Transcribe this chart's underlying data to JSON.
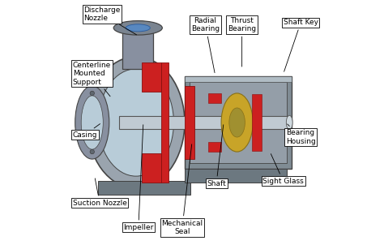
{
  "background_color": "#ffffff",
  "annotation_fontsize": 6.5,
  "annotations": [
    {
      "text": "Discharge\nNozzle",
      "pt": [
        0.28,
        0.855
      ],
      "txt": [
        0.055,
        0.945
      ],
      "ha": "left"
    },
    {
      "text": "Centerline\nMounted\nSupport",
      "pt": [
        0.17,
        0.6
      ],
      "txt": [
        0.01,
        0.7
      ],
      "ha": "left"
    },
    {
      "text": "Casing",
      "pt": [
        0.13,
        0.5
      ],
      "txt": [
        0.01,
        0.45
      ],
      "ha": "left"
    },
    {
      "text": "Suction Nozzle",
      "pt": [
        0.1,
        0.28
      ],
      "txt": [
        0.01,
        0.17
      ],
      "ha": "left"
    },
    {
      "text": "Impeller",
      "pt": [
        0.3,
        0.5
      ],
      "txt": [
        0.28,
        0.07
      ],
      "ha": "center"
    },
    {
      "text": "Mechanical\nSeal",
      "pt": [
        0.5,
        0.42
      ],
      "txt": [
        0.46,
        0.07
      ],
      "ha": "center"
    },
    {
      "text": "Shaft",
      "pt": [
        0.63,
        0.5
      ],
      "txt": [
        0.6,
        0.25
      ],
      "ha": "center"
    },
    {
      "text": "Sight Glass",
      "pt": [
        0.82,
        0.38
      ],
      "txt": [
        0.79,
        0.26
      ],
      "ha": "left"
    },
    {
      "text": "Bearing\nHousing",
      "pt": [
        0.885,
        0.5
      ],
      "txt": [
        0.885,
        0.44
      ],
      "ha": "left"
    },
    {
      "text": "Radial\nBearing",
      "pt": [
        0.595,
        0.695
      ],
      "txt": [
        0.555,
        0.9
      ],
      "ha": "center"
    },
    {
      "text": "Thrust\nBearing",
      "pt": [
        0.705,
        0.72
      ],
      "txt": [
        0.705,
        0.9
      ],
      "ha": "center"
    },
    {
      "text": "Shaft Key",
      "pt": [
        0.875,
        0.7
      ],
      "txt": [
        0.875,
        0.91
      ],
      "ha": "left"
    }
  ],
  "colors": {
    "casing": "#9aa4ae",
    "casing_edge": "#444444",
    "casing_inner": "#b8ccd8",
    "suction": "#8890a0",
    "discharge_tube": "#8890a0",
    "discharge_face": "#7a8490",
    "discharge_blue": "#5888c0",
    "bear_housing": "#808c94",
    "bear_inner": "#949ea8",
    "shaft": "#c0cad2",
    "red": "#cc2020",
    "red_edge": "#881010",
    "yellow": "#c8a428",
    "yellow_edge": "#887018",
    "base": "#6c7880",
    "base_edge": "#404040"
  }
}
